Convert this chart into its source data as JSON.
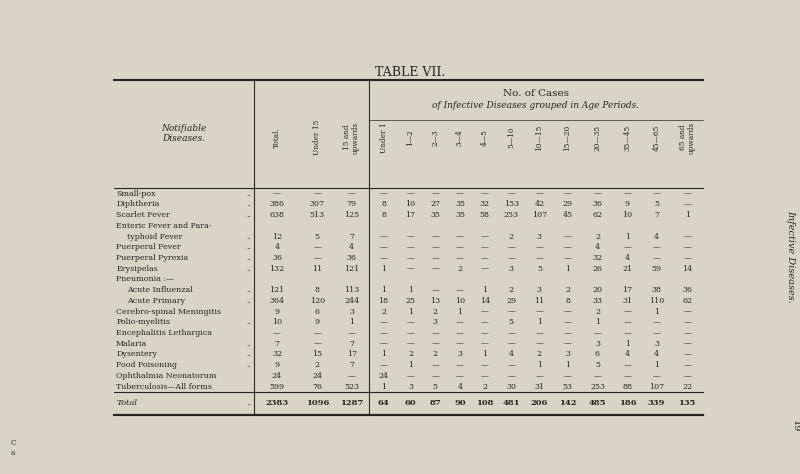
{
  "title": "TABLE VII.",
  "subtitle1": "No. of Cases",
  "subtitle2": "of Infective Diseases grouped in Age Periods.",
  "col_label_left": "Notifiable\nDiseases.",
  "col_headers": [
    "Total.",
    "Under 15",
    "15 and\nupwards",
    "Under 1",
    "1—2",
    "2—3",
    "3—4",
    "4—5",
    "5—10",
    "10—15",
    "15—20",
    "20—35",
    "35—45",
    "45—65",
    "65 and\nupwards"
  ],
  "side_label": "Infective Diseases.",
  "rows": [
    {
      "name": "Small-pox",
      "dots": true,
      "values": [
        "—",
        "—",
        "—",
        "—",
        "—",
        "—",
        "—",
        "—",
        "—",
        "—",
        "—",
        "—",
        "—",
        "—",
        "—"
      ]
    },
    {
      "name": "Diphtheria",
      "dots": true,
      "values": [
        "386",
        "307",
        "79",
        "8",
        "10",
        "27",
        "35",
        "32",
        "153",
        "42",
        "29",
        "36",
        "9",
        "5",
        "—"
      ]
    },
    {
      "name": "Scarlet Fever",
      "dots": true,
      "values": [
        "638",
        "513",
        "125",
        "8",
        "17",
        "35",
        "35",
        "58",
        "253",
        "107",
        "45",
        "62",
        "10",
        "7",
        "1"
      ]
    },
    {
      "name": "Enteric Fever and Para-",
      "dots": false,
      "values": [
        "",
        "",
        "",
        "",
        "",
        "",
        "",
        "",
        "",
        "",
        "",
        "",
        "",
        "",
        ""
      ]
    },
    {
      "name": "  typhoid Fever",
      "dots": true,
      "values": [
        "12",
        "5",
        "7",
        "—",
        "—",
        "—",
        "—",
        "—",
        "2",
        "3",
        "—",
        "2",
        "1",
        "4",
        "—"
      ]
    },
    {
      "name": "Puerperal Fever",
      "dots": true,
      "values": [
        "4",
        "—",
        "4",
        "—",
        "—",
        "—",
        "—",
        "—",
        "—",
        "—",
        "—",
        "4",
        "—",
        "—",
        "—"
      ]
    },
    {
      "name": "Puerperal Pyrexia",
      "dots": true,
      "values": [
        "36",
        "—",
        "36",
        "—",
        "—",
        "—",
        "—",
        "—",
        "—",
        "—",
        "—",
        "32",
        "4",
        "—",
        "—"
      ]
    },
    {
      "name": "Erysipelas",
      "dots": true,
      "values": [
        "132",
        "11",
        "121",
        "1",
        "—",
        "—",
        "2",
        "—",
        "3",
        "5",
        "1",
        "26",
        "21",
        "59",
        "14"
      ]
    },
    {
      "name": "Pneumonia :—",
      "dots": false,
      "values": [
        "",
        "",
        "",
        "",
        "",
        "",
        "",
        "",
        "",
        "",
        "",
        "",
        "",
        "",
        ""
      ]
    },
    {
      "name": "  Acute Influenzal",
      "dots": true,
      "values": [
        "121",
        "8",
        "113",
        "1",
        "1",
        "—",
        "—",
        "1",
        "2",
        "3",
        "2",
        "20",
        "17",
        "38",
        "36"
      ]
    },
    {
      "name": "  Acute Primary",
      "dots": true,
      "values": [
        "364",
        "120",
        "244",
        "18",
        "25",
        "13",
        "10",
        "14",
        "29",
        "11",
        "8",
        "33",
        "31",
        "110",
        "62"
      ]
    },
    {
      "name": "Cerebro-spinal Meningitis",
      "dots": false,
      "values": [
        "9",
        "6",
        "3",
        "2",
        "1",
        "2",
        "1",
        "—",
        "—",
        "—",
        "—",
        "2",
        "—",
        "1",
        "—"
      ]
    },
    {
      "name": "Polio-myelitis",
      "dots": true,
      "values": [
        "10",
        "9",
        "1",
        "—",
        "—",
        "3",
        "—",
        "—",
        "5",
        "1",
        "—",
        "1",
        "—",
        "—",
        "—"
      ]
    },
    {
      "name": "Encephalitis Lethargica",
      "dots": false,
      "values": [
        "—",
        "—",
        "—",
        "—",
        "—",
        "—",
        "—",
        "—",
        "—",
        "—",
        "—",
        "—",
        "—",
        "—",
        "—"
      ]
    },
    {
      "name": "Malaria",
      "dots": true,
      "values": [
        "7",
        "—",
        "7",
        "—",
        "—",
        "—",
        "—",
        "—",
        "—",
        "—",
        "—",
        "3",
        "1",
        "3",
        "—"
      ]
    },
    {
      "name": "Dysentery",
      "dots": true,
      "values": [
        "32",
        "15",
        "17",
        "1",
        "2",
        "2",
        "3",
        "1",
        "4",
        "2",
        "3",
        "6",
        "4",
        "4",
        "—"
      ]
    },
    {
      "name": "Food Poisoning",
      "dots": true,
      "values": [
        "9",
        "2",
        "7",
        "—",
        "1",
        "—",
        "—",
        "—",
        "—",
        "1",
        "1",
        "5",
        "—",
        "1",
        "—"
      ]
    },
    {
      "name": "Ophthalmia Neonatorum",
      "dots": false,
      "values": [
        "24",
        "24",
        "—",
        "24",
        "—",
        "—",
        "—",
        "—",
        "—",
        "—",
        "—",
        "—",
        "—",
        "—",
        "—"
      ]
    },
    {
      "name": "Tuberculosis—All forms",
      "dots": false,
      "values": [
        "599",
        "76",
        "523",
        "1",
        "3",
        "5",
        "4",
        "2",
        "30",
        "31",
        "53",
        "253",
        "88",
        "107",
        "22"
      ]
    }
  ],
  "total_row": {
    "name": "Total",
    "values": [
      "2383",
      "1096",
      "1287",
      "64",
      "60",
      "87",
      "90",
      "108",
      "481",
      "206",
      "142",
      "485",
      "186",
      "339",
      "135"
    ]
  },
  "bg_color": "#d9d4c7",
  "text_color": "#2a2520",
  "line_color": "#2a2520"
}
